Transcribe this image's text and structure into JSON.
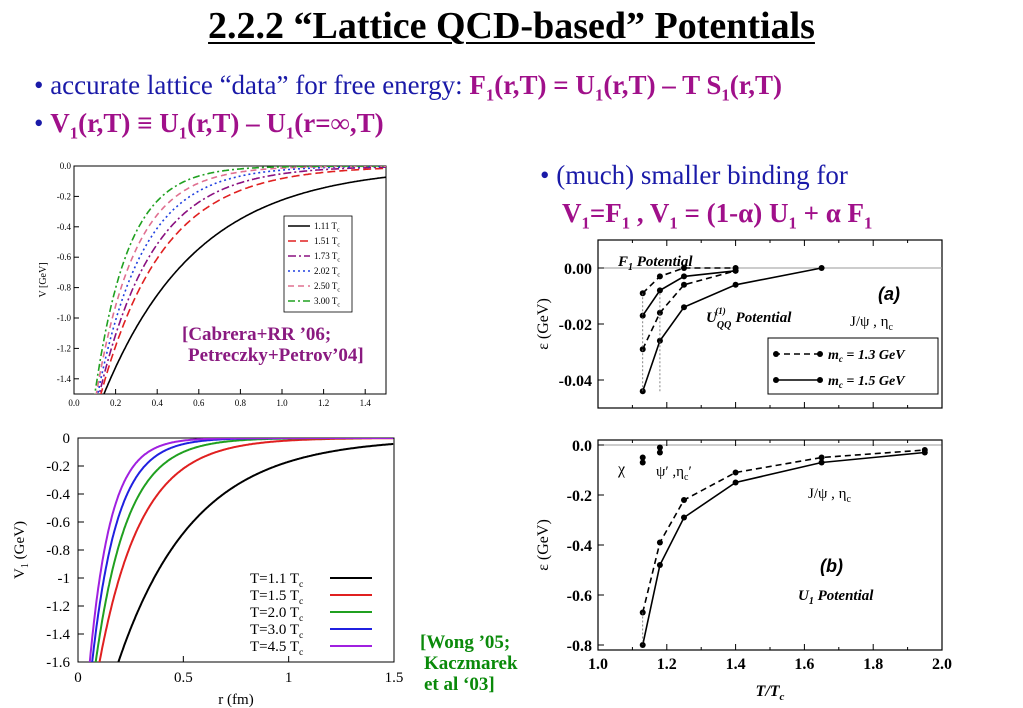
{
  "slide": {
    "title": "2.2.2  “Lattice QCD-based” Potentials",
    "bullet1_text": "• accurate lattice “data” for free energy:  ",
    "bullet1_formula": "F1(r,T) = U1(r,T) – T S1(r,T)",
    "bullet2_formula": "V1(r,T) ≡ U1(r,T) – U1(r=∞,T)",
    "bullet3_text": "• (much) smaller binding for",
    "bullet3_formula": "V1=F1 , V1 = (1-α) U1 + α F1",
    "cite_top": [
      "[Cabrera+RR ’06;",
      "Petreczky+Petrov’04]"
    ],
    "cite_bottom": [
      "[Wong ’05;",
      "Kaczmarek",
      "et al ‘03]"
    ]
  },
  "chart_data": [
    {
      "type": "line",
      "xlabel": "",
      "ylabel": "V [GeV]",
      "xlim": [
        0,
        1.5
      ],
      "ylim": [
        -1.5,
        0
      ],
      "xticks": [
        "0.0",
        "0.2",
        "0.4",
        "0.6",
        "0.8",
        "1.0",
        "1.2",
        "1.4"
      ],
      "yticks": [
        "0.0",
        "-0.2",
        "-0.4",
        "-0.6",
        "-0.8",
        "-1.0",
        "-1.2",
        "-1.4"
      ],
      "legend": "right",
      "series": [
        {
          "name": "1.11 Tc",
          "color": "#000000",
          "dash": "",
          "screen": 0.45,
          "r0": 0.115
        },
        {
          "name": "1.51 Tc",
          "color": "#e02020",
          "dash": "8,4",
          "screen": 0.3,
          "r0": 0.11
        },
        {
          "name": "1.73 Tc",
          "color": "#8a1080",
          "dash": "8,3,2,3",
          "screen": 0.26,
          "r0": 0.105
        },
        {
          "name": "2.02 Tc",
          "color": "#2040e0",
          "dash": "2,3",
          "screen": 0.22,
          "r0": 0.1
        },
        {
          "name": "2.50 Tc",
          "color": "#e07090",
          "dash": "6,4",
          "screen": 0.19,
          "r0": 0.095
        },
        {
          "name": "3.00 Tc",
          "color": "#20a020",
          "dash": "7,3,2,3",
          "screen": 0.16,
          "r0": 0.09
        }
      ]
    },
    {
      "type": "line",
      "xlabel": "r (fm)",
      "ylabel": "V1 (GeV)",
      "xlim": [
        0,
        1.5
      ],
      "ylim": [
        -1.6,
        0
      ],
      "xticks": [
        "0",
        "0.5",
        "1",
        "1.5"
      ],
      "yticks": [
        "0",
        "-0.2",
        "-0.4",
        "-0.6",
        "-0.8",
        "-1",
        "-1.2",
        "-1.4",
        "-1.6"
      ],
      "legend": "bottom-right",
      "series": [
        {
          "name": "T=1.1 Tc",
          "color": "#000000",
          "screen": 0.36,
          "r0": 0.17
        },
        {
          "name": "T=1.5 Tc",
          "color": "#e02020",
          "screen": 0.2,
          "r0": 0.09
        },
        {
          "name": "T=2.0 Tc",
          "color": "#20a020",
          "screen": 0.15,
          "r0": 0.075
        },
        {
          "name": "T=3.0 Tc",
          "color": "#2020e0",
          "screen": 0.12,
          "r0": 0.06
        },
        {
          "name": "T=4.5 Tc",
          "color": "#a020e0",
          "screen": 0.1,
          "r0": 0.05
        }
      ]
    },
    {
      "type": "line",
      "xlabel": "",
      "ylabel": "ε (GeV)",
      "xlim": [
        1.0,
        2.0
      ],
      "ylim": [
        -0.05,
        0.01
      ],
      "yticks": [
        "0.00",
        "-0.02",
        "-0.04"
      ],
      "panel_label": "(a)",
      "legend": "bottom-right",
      "annotations": [
        "F1 Potential",
        "U(1)QQ Potential",
        "J/ψ , ηc"
      ],
      "series": [
        {
          "name": "mc = 1.3 GeV",
          "dash": "6,4",
          "lines": [
            {
              "x": [
                1.13,
                1.18,
                1.25,
                1.4
              ],
              "y": [
                -0.009,
                -0.003,
                0.0,
                0.0
              ]
            },
            {
              "x": [
                1.13,
                1.18,
                1.25,
                1.4
              ],
              "y": [
                -0.029,
                -0.016,
                -0.006,
                -0.001
              ]
            }
          ]
        },
        {
          "name": "mc = 1.5 GeV",
          "dash": "",
          "lines": [
            {
              "x": [
                1.13,
                1.18,
                1.25,
                1.4
              ],
              "y": [
                -0.017,
                -0.008,
                -0.003,
                -0.001
              ]
            },
            {
              "x": [
                1.13,
                1.18,
                1.25,
                1.4,
                1.65
              ],
              "y": [
                -0.044,
                -0.026,
                -0.014,
                -0.006,
                0.0
              ]
            }
          ]
        }
      ]
    },
    {
      "type": "line",
      "xlabel": "T/Tc",
      "ylabel": "ε  (GeV)",
      "xlim": [
        1.0,
        2.0
      ],
      "ylim": [
        -0.82,
        0.02
      ],
      "xticks": [
        "1.0",
        "1.2",
        "1.4",
        "1.6",
        "1.8",
        "2.0"
      ],
      "yticks": [
        "0.0",
        "-0.2",
        "-0.4",
        "-0.6",
        "-0.8"
      ],
      "panel_label": "(b)",
      "annotations": [
        "U1 Potential",
        "J/ψ , ηc",
        "χ",
        "ψ′ ,ηc′"
      ],
      "series": [
        {
          "name": "mc = 1.3 GeV",
          "dash": "6,4",
          "x": [
            1.13,
            1.18,
            1.25,
            1.4,
            1.65,
            1.95
          ],
          "y": [
            -0.67,
            -0.39,
            -0.22,
            -0.11,
            -0.05,
            -0.02
          ]
        },
        {
          "name": "mc = 1.5 GeV",
          "dash": "",
          "x": [
            1.13,
            1.18,
            1.25,
            1.4,
            1.65,
            1.95
          ],
          "y": [
            -0.8,
            -0.48,
            -0.29,
            -0.15,
            -0.07,
            -0.03
          ]
        }
      ]
    }
  ]
}
